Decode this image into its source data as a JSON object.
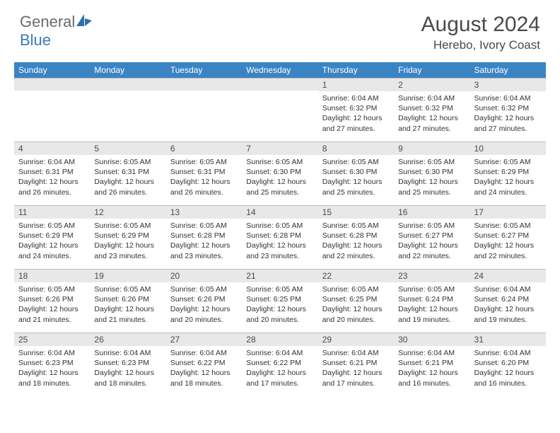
{
  "logo": {
    "general": "General",
    "blue": "Blue"
  },
  "title": "August 2024",
  "location": "Herebo, Ivory Coast",
  "header_color": "#3a84c4",
  "daybar_color": "#e8e8e8",
  "weekdays": [
    "Sunday",
    "Monday",
    "Tuesday",
    "Wednesday",
    "Thursday",
    "Friday",
    "Saturday"
  ],
  "weeks": [
    [
      null,
      null,
      null,
      null,
      {
        "num": "1",
        "sunrise": "Sunrise: 6:04 AM",
        "sunset": "Sunset: 6:32 PM",
        "daylight": "Daylight: 12 hours and 27 minutes."
      },
      {
        "num": "2",
        "sunrise": "Sunrise: 6:04 AM",
        "sunset": "Sunset: 6:32 PM",
        "daylight": "Daylight: 12 hours and 27 minutes."
      },
      {
        "num": "3",
        "sunrise": "Sunrise: 6:04 AM",
        "sunset": "Sunset: 6:32 PM",
        "daylight": "Daylight: 12 hours and 27 minutes."
      }
    ],
    [
      {
        "num": "4",
        "sunrise": "Sunrise: 6:04 AM",
        "sunset": "Sunset: 6:31 PM",
        "daylight": "Daylight: 12 hours and 26 minutes."
      },
      {
        "num": "5",
        "sunrise": "Sunrise: 6:05 AM",
        "sunset": "Sunset: 6:31 PM",
        "daylight": "Daylight: 12 hours and 26 minutes."
      },
      {
        "num": "6",
        "sunrise": "Sunrise: 6:05 AM",
        "sunset": "Sunset: 6:31 PM",
        "daylight": "Daylight: 12 hours and 26 minutes."
      },
      {
        "num": "7",
        "sunrise": "Sunrise: 6:05 AM",
        "sunset": "Sunset: 6:30 PM",
        "daylight": "Daylight: 12 hours and 25 minutes."
      },
      {
        "num": "8",
        "sunrise": "Sunrise: 6:05 AM",
        "sunset": "Sunset: 6:30 PM",
        "daylight": "Daylight: 12 hours and 25 minutes."
      },
      {
        "num": "9",
        "sunrise": "Sunrise: 6:05 AM",
        "sunset": "Sunset: 6:30 PM",
        "daylight": "Daylight: 12 hours and 25 minutes."
      },
      {
        "num": "10",
        "sunrise": "Sunrise: 6:05 AM",
        "sunset": "Sunset: 6:29 PM",
        "daylight": "Daylight: 12 hours and 24 minutes."
      }
    ],
    [
      {
        "num": "11",
        "sunrise": "Sunrise: 6:05 AM",
        "sunset": "Sunset: 6:29 PM",
        "daylight": "Daylight: 12 hours and 24 minutes."
      },
      {
        "num": "12",
        "sunrise": "Sunrise: 6:05 AM",
        "sunset": "Sunset: 6:29 PM",
        "daylight": "Daylight: 12 hours and 23 minutes."
      },
      {
        "num": "13",
        "sunrise": "Sunrise: 6:05 AM",
        "sunset": "Sunset: 6:28 PM",
        "daylight": "Daylight: 12 hours and 23 minutes."
      },
      {
        "num": "14",
        "sunrise": "Sunrise: 6:05 AM",
        "sunset": "Sunset: 6:28 PM",
        "daylight": "Daylight: 12 hours and 23 minutes."
      },
      {
        "num": "15",
        "sunrise": "Sunrise: 6:05 AM",
        "sunset": "Sunset: 6:28 PM",
        "daylight": "Daylight: 12 hours and 22 minutes."
      },
      {
        "num": "16",
        "sunrise": "Sunrise: 6:05 AM",
        "sunset": "Sunset: 6:27 PM",
        "daylight": "Daylight: 12 hours and 22 minutes."
      },
      {
        "num": "17",
        "sunrise": "Sunrise: 6:05 AM",
        "sunset": "Sunset: 6:27 PM",
        "daylight": "Daylight: 12 hours and 22 minutes."
      }
    ],
    [
      {
        "num": "18",
        "sunrise": "Sunrise: 6:05 AM",
        "sunset": "Sunset: 6:26 PM",
        "daylight": "Daylight: 12 hours and 21 minutes."
      },
      {
        "num": "19",
        "sunrise": "Sunrise: 6:05 AM",
        "sunset": "Sunset: 6:26 PM",
        "daylight": "Daylight: 12 hours and 21 minutes."
      },
      {
        "num": "20",
        "sunrise": "Sunrise: 6:05 AM",
        "sunset": "Sunset: 6:26 PM",
        "daylight": "Daylight: 12 hours and 20 minutes."
      },
      {
        "num": "21",
        "sunrise": "Sunrise: 6:05 AM",
        "sunset": "Sunset: 6:25 PM",
        "daylight": "Daylight: 12 hours and 20 minutes."
      },
      {
        "num": "22",
        "sunrise": "Sunrise: 6:05 AM",
        "sunset": "Sunset: 6:25 PM",
        "daylight": "Daylight: 12 hours and 20 minutes."
      },
      {
        "num": "23",
        "sunrise": "Sunrise: 6:05 AM",
        "sunset": "Sunset: 6:24 PM",
        "daylight": "Daylight: 12 hours and 19 minutes."
      },
      {
        "num": "24",
        "sunrise": "Sunrise: 6:04 AM",
        "sunset": "Sunset: 6:24 PM",
        "daylight": "Daylight: 12 hours and 19 minutes."
      }
    ],
    [
      {
        "num": "25",
        "sunrise": "Sunrise: 6:04 AM",
        "sunset": "Sunset: 6:23 PM",
        "daylight": "Daylight: 12 hours and 18 minutes."
      },
      {
        "num": "26",
        "sunrise": "Sunrise: 6:04 AM",
        "sunset": "Sunset: 6:23 PM",
        "daylight": "Daylight: 12 hours and 18 minutes."
      },
      {
        "num": "27",
        "sunrise": "Sunrise: 6:04 AM",
        "sunset": "Sunset: 6:22 PM",
        "daylight": "Daylight: 12 hours and 18 minutes."
      },
      {
        "num": "28",
        "sunrise": "Sunrise: 6:04 AM",
        "sunset": "Sunset: 6:22 PM",
        "daylight": "Daylight: 12 hours and 17 minutes."
      },
      {
        "num": "29",
        "sunrise": "Sunrise: 6:04 AM",
        "sunset": "Sunset: 6:21 PM",
        "daylight": "Daylight: 12 hours and 17 minutes."
      },
      {
        "num": "30",
        "sunrise": "Sunrise: 6:04 AM",
        "sunset": "Sunset: 6:21 PM",
        "daylight": "Daylight: 12 hours and 16 minutes."
      },
      {
        "num": "31",
        "sunrise": "Sunrise: 6:04 AM",
        "sunset": "Sunset: 6:20 PM",
        "daylight": "Daylight: 12 hours and 16 minutes."
      }
    ]
  ]
}
